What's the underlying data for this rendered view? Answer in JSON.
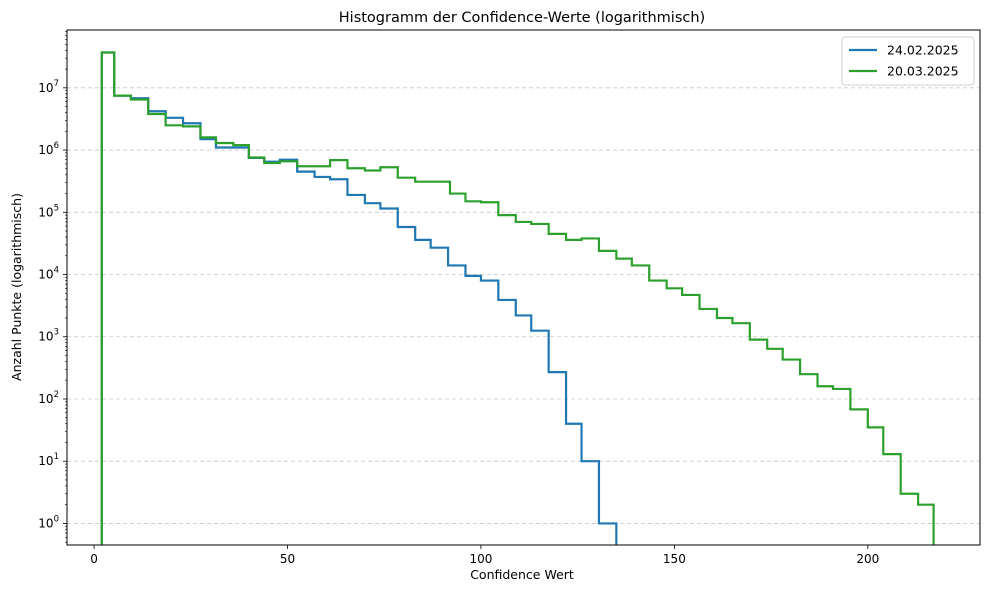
{
  "chart_data": {
    "type": "line",
    "drawstyle": "steps-post",
    "title": "Histogramm der Confidence-Werte (logarithmisch)",
    "xlabel": "Confidence Wert",
    "ylabel": "Anzahl Punkte (logarithmisch)",
    "xlim": [
      -7,
      229
    ],
    "ylim": [
      0.45,
      85000000
    ],
    "yscale": "log",
    "xticks": [
      0,
      50,
      100,
      150,
      200
    ],
    "xtick_labels": [
      "0",
      "50",
      "100",
      "150",
      "200"
    ],
    "yticks": [
      1,
      10,
      100,
      1000,
      10000,
      100000,
      1000000,
      10000000
    ],
    "ytick_labels": [
      {
        "base": "10",
        "exp": "0"
      },
      {
        "base": "10",
        "exp": "1"
      },
      {
        "base": "10",
        "exp": "2"
      },
      {
        "base": "10",
        "exp": "3"
      },
      {
        "base": "10",
        "exp": "4"
      },
      {
        "base": "10",
        "exp": "5"
      },
      {
        "base": "10",
        "exp": "6"
      },
      {
        "base": "10",
        "exp": "7"
      }
    ],
    "grid": {
      "y": true,
      "x": false,
      "style": "dashed"
    },
    "legend": {
      "placement": "top-right"
    },
    "series": [
      {
        "name": "24.02.2025",
        "color": "#1f77b4",
        "x": [
          2,
          5.2,
          9.5,
          14,
          18.5,
          23,
          27.5,
          31.5,
          40,
          44,
          48,
          52.5,
          57,
          61,
          65.5,
          70,
          74,
          78.5,
          83,
          87,
          91.5,
          96,
          100,
          104.5,
          109,
          113,
          117.5,
          122,
          126,
          130.5,
          135
        ],
        "values": [
          37000000,
          7500000,
          6800000,
          4200000,
          3300000,
          2700000,
          1500000,
          1100000,
          750000,
          650000,
          700000,
          450000,
          370000,
          340000,
          190000,
          140000,
          115000,
          58000,
          36000,
          27000,
          14000,
          9500,
          8000,
          3900,
          2200,
          1250,
          270,
          40,
          10,
          1,
          0.45
        ]
      },
      {
        "name": "20.03.2025",
        "color": "#2ca02c",
        "x": [
          2,
          5.2,
          9.5,
          14,
          18.5,
          23,
          27.5,
          31.5,
          36,
          40,
          44,
          48,
          52.5,
          61,
          65.5,
          70,
          74,
          78.5,
          83,
          92,
          96,
          100,
          104.5,
          109,
          113,
          117.5,
          122,
          126,
          130.5,
          135,
          139,
          143.5,
          148,
          152,
          156.5,
          161,
          165,
          169.5,
          174,
          178,
          182.5,
          187,
          191,
          195.5,
          200,
          204,
          208.5,
          213,
          217
        ],
        "values": [
          37000000,
          7500000,
          6500000,
          3800000,
          2500000,
          2400000,
          1600000,
          1300000,
          1200000,
          760000,
          620000,
          660000,
          550000,
          690000,
          510000,
          470000,
          530000,
          360000,
          310000,
          200000,
          150000,
          145000,
          90000,
          70000,
          65000,
          45000,
          36000,
          38000,
          24000,
          18000,
          14000,
          8000,
          6000,
          4700,
          2800,
          2000,
          1650,
          900,
          640,
          430,
          250,
          160,
          145,
          68,
          35,
          13,
          3,
          2,
          0.45
        ]
      }
    ]
  }
}
